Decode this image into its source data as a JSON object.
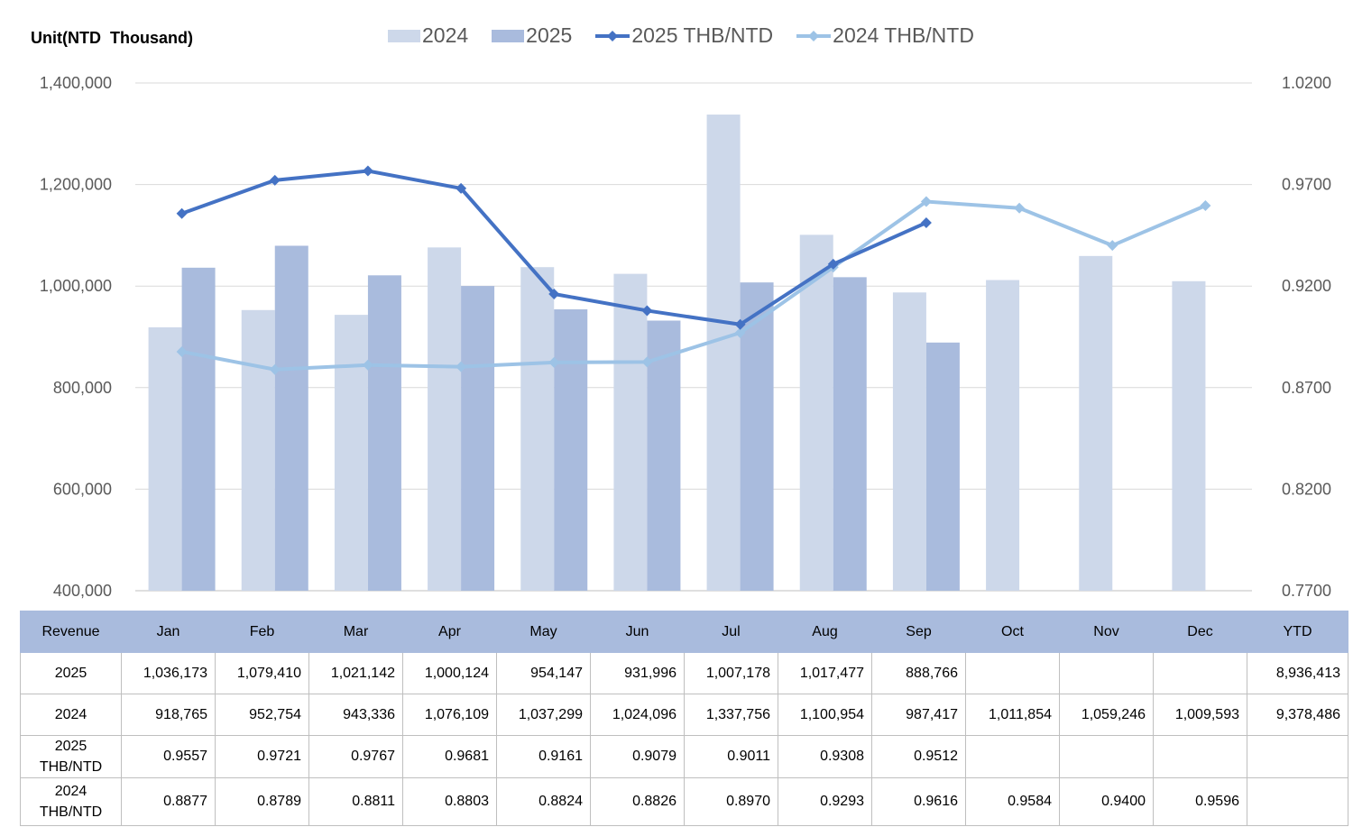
{
  "unit_label": "Unit(NTD  Thousand)",
  "legend": [
    {
      "label": "2024",
      "kind": "bar",
      "color": "#cdd8ea"
    },
    {
      "label": "2025",
      "kind": "bar",
      "color": "#a9bbdd"
    },
    {
      "label": "2025 THB/NTD",
      "kind": "line",
      "color": "#4472c4"
    },
    {
      "label": "2024 THB/NTD",
      "kind": "line",
      "color": "#9dc3e6"
    }
  ],
  "chart_data": {
    "type": "bar+line",
    "categories": [
      "Jan",
      "Feb",
      "Mar",
      "Apr",
      "May",
      "Jun",
      "Jul",
      "Aug",
      "Sep",
      "Oct",
      "Nov",
      "Dec"
    ],
    "left_axis": {
      "ylim": [
        400000,
        1400000
      ],
      "ticks": [
        "400,000",
        "600,000",
        "800,000",
        "1,000,000",
        "1,200,000",
        "1,400,000"
      ]
    },
    "right_axis": {
      "ylim": [
        0.77,
        1.02
      ],
      "ticks": [
        "0.7700",
        "0.8200",
        "0.8700",
        "0.9200",
        "0.9700",
        "1.0200"
      ]
    },
    "grid": true,
    "legend_position": "top",
    "series": [
      {
        "name": "2024",
        "type": "bar",
        "axis": "left",
        "color": "#cdd8ea",
        "values": [
          918765,
          952754,
          943336,
          1076109,
          1037299,
          1024096,
          1337756,
          1100954,
          987417,
          1011854,
          1059246,
          1009593
        ]
      },
      {
        "name": "2025",
        "type": "bar",
        "axis": "left",
        "color": "#a9bbdd",
        "values": [
          1036173,
          1079410,
          1021142,
          1000124,
          954147,
          931996,
          1007178,
          1017477,
          888766,
          null,
          null,
          null
        ]
      },
      {
        "name": "2025 THB/NTD",
        "type": "line",
        "axis": "right",
        "color": "#4472c4",
        "values": [
          0.9557,
          0.9721,
          0.9767,
          0.9681,
          0.9161,
          0.9079,
          0.9011,
          0.9308,
          0.9512,
          null,
          null,
          null
        ]
      },
      {
        "name": "2024 THB/NTD",
        "type": "line",
        "axis": "right",
        "color": "#9dc3e6",
        "values": [
          0.8877,
          0.8789,
          0.8811,
          0.8803,
          0.8824,
          0.8826,
          0.897,
          0.9293,
          0.9616,
          0.9584,
          0.94,
          0.9596
        ]
      }
    ]
  },
  "table": {
    "header": [
      "Revenue",
      "Jan",
      "Feb",
      "Mar",
      "Apr",
      "May",
      "Jun",
      "Jul",
      "Aug",
      "Sep",
      "Oct",
      "Nov",
      "Dec",
      "YTD"
    ],
    "rows": [
      {
        "label": [
          "2025"
        ],
        "cells": [
          "1,036,173",
          "1,079,410",
          "1,021,142",
          "1,000,124",
          "954,147",
          "931,996",
          "1,007,178",
          "1,017,477",
          "888,766",
          "",
          "",
          "",
          "8,936,413"
        ]
      },
      {
        "label": [
          "2024"
        ],
        "cells": [
          "918,765",
          "952,754",
          "943,336",
          "1,076,109",
          "1,037,299",
          "1,024,096",
          "1,337,756",
          "1,100,954",
          "987,417",
          "1,011,854",
          "1,059,246",
          "1,009,593",
          "9,378,486"
        ]
      },
      {
        "label": [
          "2025",
          "THB/NTD"
        ],
        "cells": [
          "0.9557",
          "0.9721",
          "0.9767",
          "0.9681",
          "0.9161",
          "0.9079",
          "0.9011",
          "0.9308",
          "0.9512",
          "",
          "",
          "",
          ""
        ]
      },
      {
        "label": [
          "2024",
          "THB/NTD"
        ],
        "cells": [
          "0.8877",
          "0.8789",
          "0.8811",
          "0.8803",
          "0.8824",
          "0.8826",
          "0.8970",
          "0.9293",
          "0.9616",
          "0.9584",
          "0.9400",
          "0.9596",
          ""
        ]
      }
    ]
  }
}
